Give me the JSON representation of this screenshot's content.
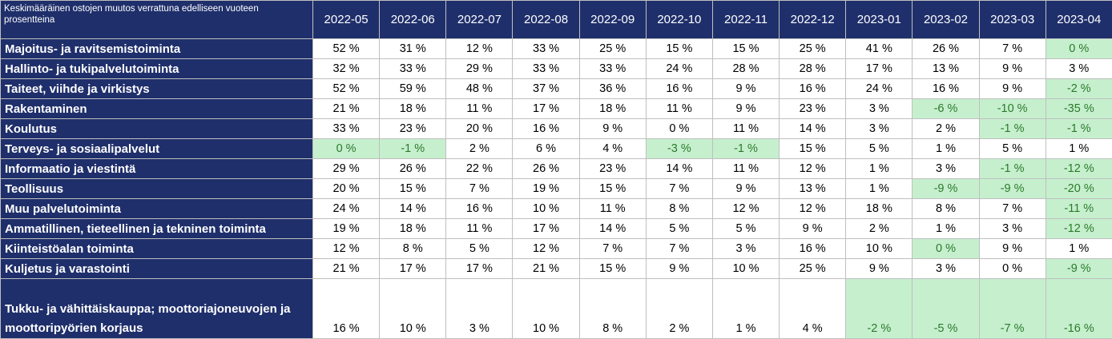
{
  "table": {
    "corner_label": "Keskimääräinen ostojen muutos verrattuna edelliseen vuoteen prosentteina",
    "columns": [
      "2022-05",
      "2022-06",
      "2022-07",
      "2022-08",
      "2022-09",
      "2022-10",
      "2022-11",
      "2022-12",
      "2023-01",
      "2023-02",
      "2023-03",
      "2023-04"
    ],
    "rows": [
      {
        "label": "Majoitus- ja ravitsemistoiminta",
        "values": [
          "52 %",
          "31 %",
          "12 %",
          "33 %",
          "25 %",
          "15 %",
          "15 %",
          "25 %",
          "41 %",
          "26 %",
          "7 %",
          "0 %"
        ],
        "highlight": [
          false,
          false,
          false,
          false,
          false,
          false,
          false,
          false,
          false,
          false,
          false,
          true
        ]
      },
      {
        "label": "Hallinto- ja tukipalvelutoiminta",
        "values": [
          "32 %",
          "33 %",
          "29 %",
          "33 %",
          "33 %",
          "24 %",
          "28 %",
          "28 %",
          "17 %",
          "13 %",
          "9 %",
          "3 %"
        ],
        "highlight": [
          false,
          false,
          false,
          false,
          false,
          false,
          false,
          false,
          false,
          false,
          false,
          false
        ]
      },
      {
        "label": "Taiteet, viihde ja virkistys",
        "values": [
          "52 %",
          "59 %",
          "48 %",
          "37 %",
          "36 %",
          "16 %",
          "9 %",
          "16 %",
          "24 %",
          "16 %",
          "9 %",
          "-2 %"
        ],
        "highlight": [
          false,
          false,
          false,
          false,
          false,
          false,
          false,
          false,
          false,
          false,
          false,
          true
        ]
      },
      {
        "label": "Rakentaminen",
        "values": [
          "21 %",
          "18 %",
          "11 %",
          "17 %",
          "18 %",
          "11 %",
          "9 %",
          "23 %",
          "3 %",
          "-6 %",
          "-10 %",
          "-35 %"
        ],
        "highlight": [
          false,
          false,
          false,
          false,
          false,
          false,
          false,
          false,
          false,
          true,
          true,
          true
        ]
      },
      {
        "label": "Koulutus",
        "values": [
          "33 %",
          "23 %",
          "20 %",
          "16 %",
          "9 %",
          "0 %",
          "11 %",
          "14 %",
          "3 %",
          "2 %",
          "-1 %",
          "-1 %"
        ],
        "highlight": [
          false,
          false,
          false,
          false,
          false,
          false,
          false,
          false,
          false,
          false,
          true,
          true
        ]
      },
      {
        "label": "Terveys- ja sosiaalipalvelut",
        "values": [
          "0 %",
          "-1 %",
          "2 %",
          "6 %",
          "4 %",
          "-3 %",
          "-1 %",
          "15 %",
          "5 %",
          "1 %",
          "5 %",
          "1 %"
        ],
        "highlight": [
          true,
          true,
          false,
          false,
          false,
          true,
          true,
          false,
          false,
          false,
          false,
          false
        ]
      },
      {
        "label": "Informaatio ja viestintä",
        "values": [
          "29 %",
          "26 %",
          "22 %",
          "26 %",
          "23 %",
          "14 %",
          "11 %",
          "12 %",
          "1 %",
          "3 %",
          "-1 %",
          "-12 %"
        ],
        "highlight": [
          false,
          false,
          false,
          false,
          false,
          false,
          false,
          false,
          false,
          false,
          true,
          true
        ]
      },
      {
        "label": "Teollisuus",
        "values": [
          "20 %",
          "15 %",
          "7 %",
          "19 %",
          "15 %",
          "7 %",
          "9 %",
          "13 %",
          "1 %",
          "-9 %",
          "-9 %",
          "-20 %"
        ],
        "highlight": [
          false,
          false,
          false,
          false,
          false,
          false,
          false,
          false,
          false,
          true,
          true,
          true
        ]
      },
      {
        "label": "Muu palvelutoiminta",
        "values": [
          "24 %",
          "14 %",
          "16 %",
          "10 %",
          "11 %",
          "8 %",
          "12 %",
          "12 %",
          "18 %",
          "8 %",
          "7 %",
          "-11 %"
        ],
        "highlight": [
          false,
          false,
          false,
          false,
          false,
          false,
          false,
          false,
          false,
          false,
          false,
          true
        ]
      },
      {
        "label": "Ammatillinen, tieteellinen ja tekninen toiminta",
        "values": [
          "19 %",
          "18 %",
          "11 %",
          "17 %",
          "14 %",
          "5 %",
          "5 %",
          "9 %",
          "2 %",
          "1 %",
          "3 %",
          "-12 %"
        ],
        "highlight": [
          false,
          false,
          false,
          false,
          false,
          false,
          false,
          false,
          false,
          false,
          false,
          true
        ]
      },
      {
        "label": "Kiinteistöalan toiminta",
        "values": [
          "12 %",
          "8 %",
          "5 %",
          "12 %",
          "7 %",
          "7 %",
          "3 %",
          "16 %",
          "10 %",
          "0 %",
          "9 %",
          "1 %"
        ],
        "highlight": [
          false,
          false,
          false,
          false,
          false,
          false,
          false,
          false,
          false,
          true,
          false,
          false
        ]
      },
      {
        "label": "Kuljetus ja varastointi",
        "values": [
          "21 %",
          "17 %",
          "17 %",
          "21 %",
          "15 %",
          "9 %",
          "10 %",
          "25 %",
          "9 %",
          "3 %",
          "0 %",
          "-9 %"
        ],
        "highlight": [
          false,
          false,
          false,
          false,
          false,
          false,
          false,
          false,
          false,
          false,
          false,
          true
        ]
      },
      {
        "label": "Tukku- ja vähittäiskauppa; moottoriajoneuvojen ja moottoripyörien korjaus",
        "values": [
          "16 %",
          "10 %",
          "3 %",
          "10 %",
          "8 %",
          "2 %",
          "1 %",
          "4 %",
          "-2 %",
          "-5 %",
          "-7 %",
          "-16 %"
        ],
        "highlight": [
          false,
          false,
          false,
          false,
          false,
          false,
          false,
          false,
          true,
          true,
          true,
          true
        ],
        "tall": true
      }
    ]
  },
  "colors": {
    "header_bg": "#1f2f6b",
    "header_text": "#ffffff",
    "highlight_bg": "#c6efce",
    "highlight_text": "#2a7a2a",
    "grid": "#bfbfbf"
  }
}
